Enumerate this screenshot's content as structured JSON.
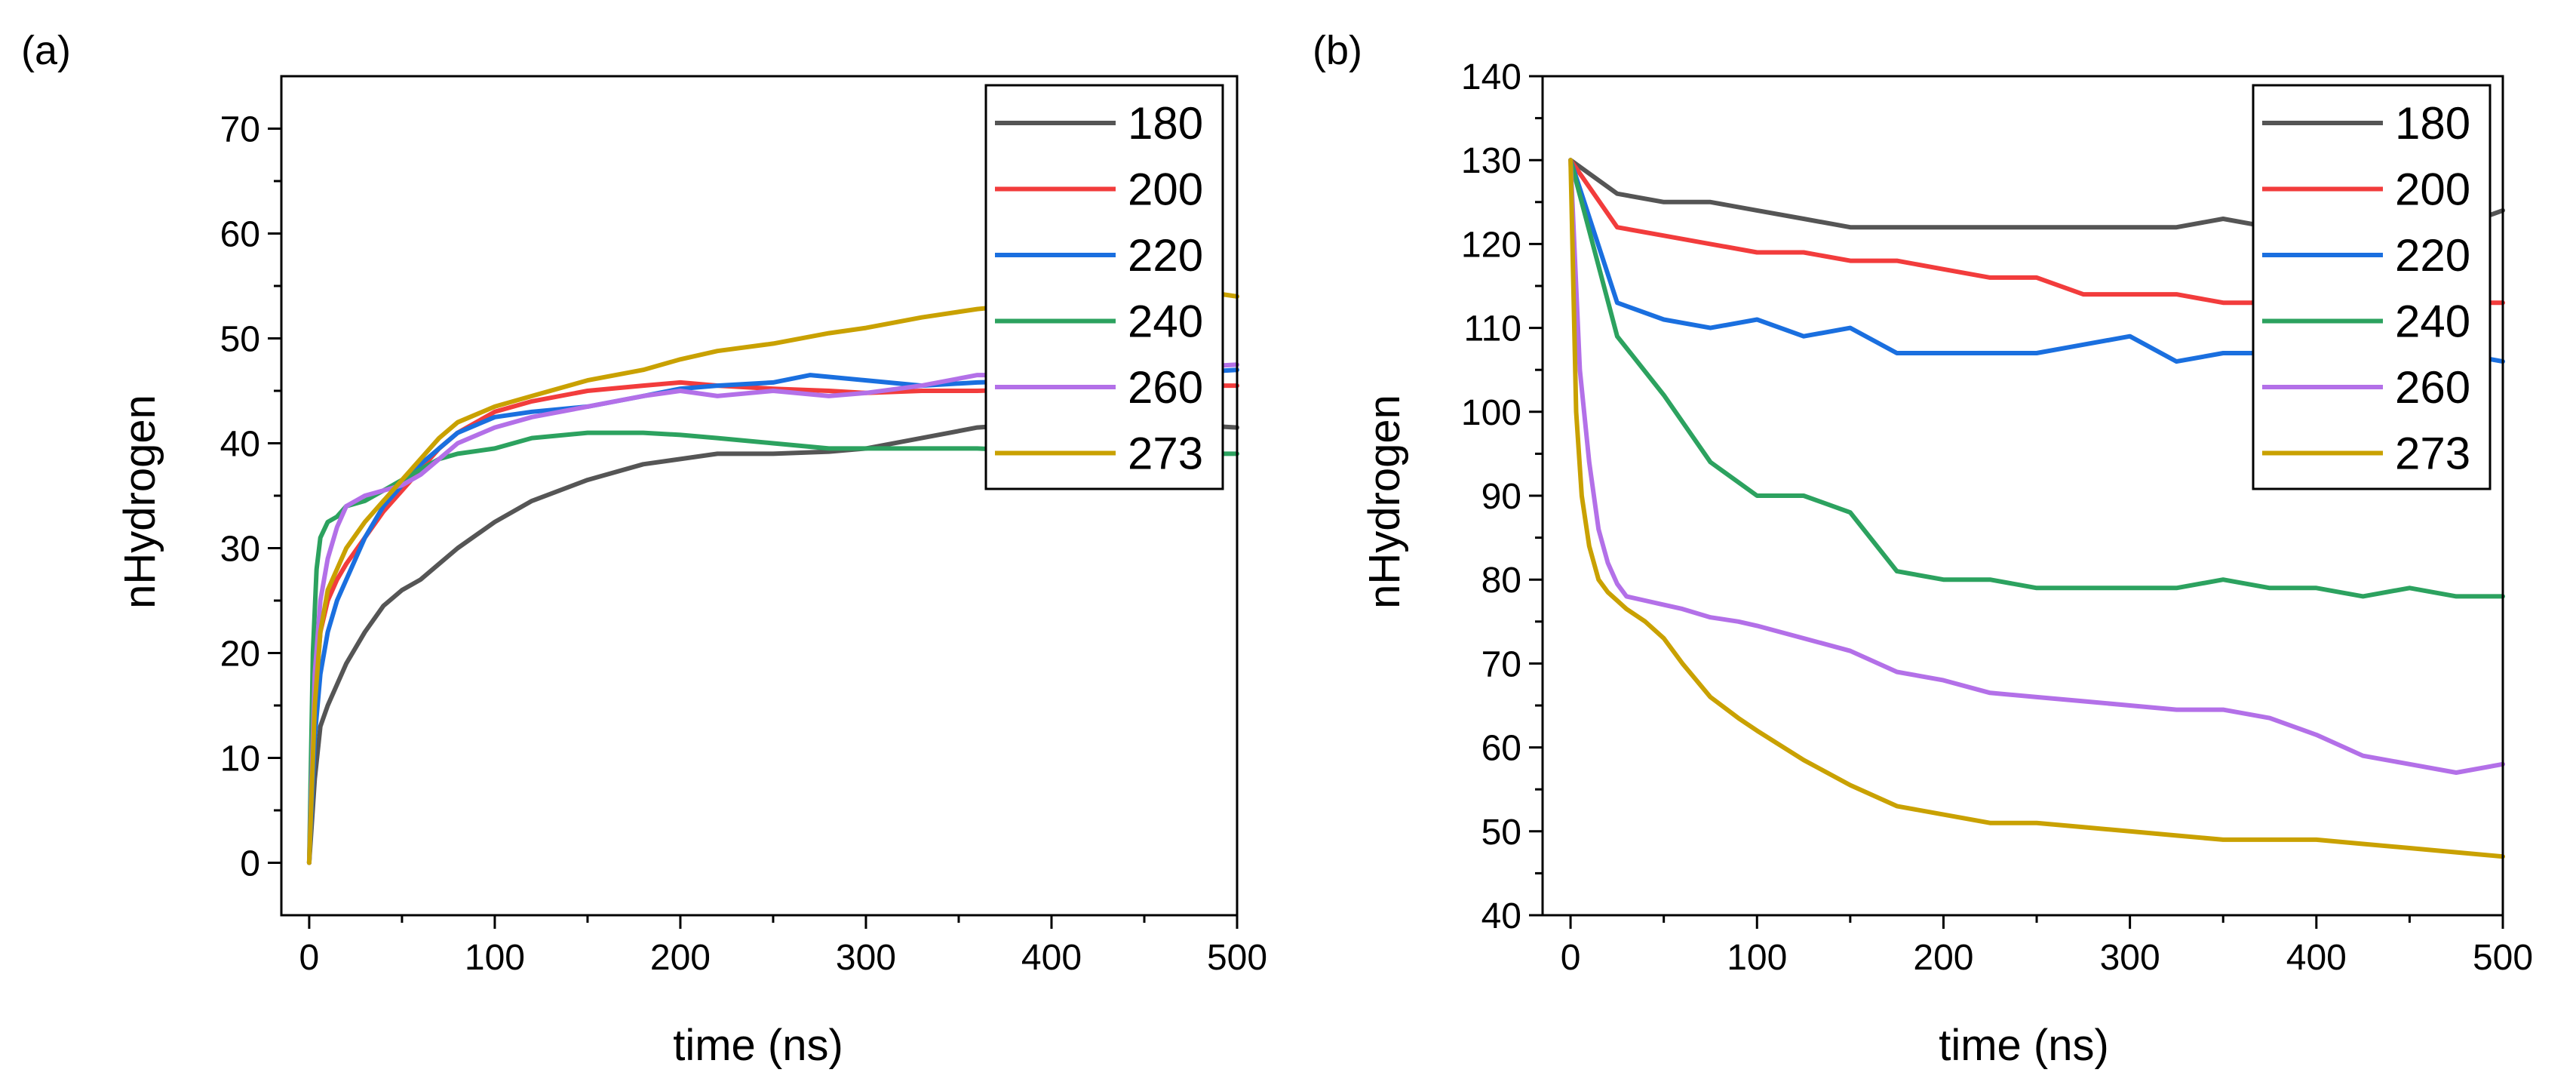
{
  "colors": {
    "180": "#555555",
    "200": "#f23c3c",
    "220": "#1a6fdf",
    "240": "#2ca25f",
    "260": "#b370e8",
    "273": "#c9a100"
  },
  "chart_data": [
    {
      "type": "line",
      "panel": "(a)",
      "xlabel": "time (ns)",
      "ylabel": "nHydrogen",
      "xlim": [
        -15,
        500
      ],
      "ylim": [
        -5,
        75
      ],
      "xticks": [
        0,
        100,
        200,
        300,
        400,
        500
      ],
      "yticks": [
        0,
        10,
        20,
        30,
        40,
        50,
        60,
        70
      ],
      "legend_position": "top-right",
      "series": [
        {
          "name": "180",
          "x": [
            0,
            3,
            6,
            10,
            15,
            20,
            30,
            40,
            50,
            60,
            70,
            80,
            100,
            120,
            150,
            180,
            200,
            220,
            250,
            280,
            300,
            330,
            360,
            400,
            450,
            500
          ],
          "y": [
            0,
            8,
            13,
            15,
            17,
            19,
            22,
            24.5,
            26,
            27,
            28.5,
            30,
            32.5,
            34.5,
            36.5,
            38,
            38.5,
            39,
            39,
            39.2,
            39.5,
            40.5,
            41.5,
            42,
            42,
            41.5
          ]
        },
        {
          "name": "200",
          "x": [
            0,
            3,
            6,
            10,
            15,
            20,
            30,
            40,
            50,
            60,
            70,
            80,
            100,
            120,
            150,
            180,
            200,
            220,
            250,
            280,
            300,
            330,
            360,
            400,
            450,
            500
          ],
          "y": [
            0,
            15,
            22,
            25,
            27,
            28.5,
            31,
            33.5,
            35.5,
            37.5,
            39.5,
            41,
            43,
            44,
            45,
            45.5,
            45.8,
            45.5,
            45.2,
            45,
            44.8,
            45,
            45,
            45.2,
            45.5,
            45.5
          ]
        },
        {
          "name": "220",
          "x": [
            0,
            3,
            6,
            10,
            15,
            20,
            30,
            40,
            50,
            60,
            70,
            80,
            100,
            120,
            150,
            180,
            200,
            220,
            250,
            270,
            300,
            330,
            360,
            400,
            450,
            500
          ],
          "y": [
            0,
            12,
            18,
            22,
            25,
            27,
            31,
            34,
            36,
            38,
            39.5,
            41,
            42.5,
            43,
            43.5,
            44.5,
            45.2,
            45.5,
            45.8,
            46.5,
            46,
            45.5,
            45.8,
            46,
            46.5,
            47
          ]
        },
        {
          "name": "240",
          "x": [
            0,
            2,
            4,
            6,
            10,
            15,
            20,
            30,
            40,
            50,
            60,
            70,
            80,
            100,
            120,
            150,
            180,
            200,
            220,
            250,
            280,
            300,
            330,
            360,
            400,
            450,
            500
          ],
          "y": [
            0,
            20,
            28,
            31,
            32.5,
            33,
            34,
            34.5,
            35.5,
            36.5,
            37.5,
            38.5,
            39,
            39.5,
            40.5,
            41,
            41,
            40.8,
            40.5,
            40,
            39.5,
            39.5,
            39.5,
            39.5,
            39.2,
            39,
            39
          ]
        },
        {
          "name": "260",
          "x": [
            0,
            3,
            6,
            10,
            15,
            20,
            30,
            40,
            50,
            60,
            70,
            80,
            100,
            120,
            150,
            180,
            200,
            220,
            250,
            280,
            300,
            330,
            360,
            400,
            450,
            500
          ],
          "y": [
            0,
            18,
            25,
            29,
            32,
            34,
            35,
            35.5,
            36,
            37,
            38.5,
            40,
            41.5,
            42.5,
            43.5,
            44.5,
            45,
            44.5,
            45,
            44.5,
            44.8,
            45.5,
            46.5,
            46.5,
            47,
            47.5
          ]
        },
        {
          "name": "273",
          "x": [
            0,
            3,
            6,
            10,
            15,
            20,
            30,
            40,
            50,
            60,
            70,
            80,
            100,
            120,
            150,
            180,
            200,
            220,
            250,
            280,
            300,
            330,
            360,
            400,
            450,
            480,
            500
          ],
          "y": [
            0,
            15,
            22,
            26,
            28,
            30,
            32.5,
            34.5,
            36.5,
            38.5,
            40.5,
            42,
            43.5,
            44.5,
            46,
            47,
            48,
            48.8,
            49.5,
            50.5,
            51,
            52,
            52.8,
            53.5,
            54,
            54.5,
            54
          ]
        }
      ]
    },
    {
      "type": "line",
      "panel": "(b)",
      "xlabel": "time (ns)",
      "ylabel": "nHydrogen",
      "xlim": [
        -15,
        500
      ],
      "ylim": [
        40,
        140
      ],
      "xticks": [
        0,
        100,
        200,
        300,
        400,
        500
      ],
      "yticks": [
        40,
        50,
        60,
        70,
        80,
        90,
        100,
        110,
        120,
        130,
        140
      ],
      "legend_position": "top-right",
      "series": [
        {
          "name": "180",
          "x": [
            0,
            25,
            50,
            75,
            100,
            125,
            150,
            175,
            200,
            225,
            250,
            275,
            300,
            325,
            350,
            375,
            400,
            425,
            450,
            475,
            500
          ],
          "y": [
            130,
            126,
            125,
            125,
            124,
            123,
            122,
            122,
            122,
            122,
            122,
            122,
            122,
            122,
            123,
            122,
            122,
            122,
            122,
            122,
            124
          ]
        },
        {
          "name": "200",
          "x": [
            0,
            25,
            50,
            75,
            100,
            125,
            150,
            175,
            200,
            225,
            250,
            275,
            300,
            325,
            350,
            375,
            400,
            425,
            450,
            475,
            500
          ],
          "y": [
            130,
            122,
            121,
            120,
            119,
            119,
            118,
            118,
            117,
            116,
            116,
            114,
            114,
            114,
            113,
            113,
            113,
            113,
            113,
            113,
            113
          ]
        },
        {
          "name": "220",
          "x": [
            0,
            25,
            50,
            75,
            100,
            125,
            150,
            175,
            200,
            225,
            250,
            275,
            300,
            325,
            350,
            375,
            400,
            425,
            450,
            475,
            500
          ],
          "y": [
            130,
            113,
            111,
            110,
            111,
            109,
            110,
            107,
            107,
            107,
            107,
            108,
            109,
            106,
            107,
            107,
            107,
            107,
            107,
            107,
            106
          ]
        },
        {
          "name": "240",
          "x": [
            0,
            25,
            50,
            75,
            100,
            125,
            150,
            175,
            200,
            225,
            250,
            275,
            300,
            325,
            350,
            375,
            400,
            425,
            450,
            475,
            500
          ],
          "y": [
            130,
            109,
            102,
            94,
            90,
            90,
            88,
            81,
            80,
            80,
            79,
            79,
            79,
            79,
            80,
            79,
            79,
            78,
            79,
            78,
            78
          ]
        },
        {
          "name": "260",
          "x": [
            0,
            5,
            10,
            15,
            20,
            25,
            30,
            40,
            50,
            60,
            75,
            90,
            100,
            125,
            150,
            175,
            200,
            225,
            250,
            275,
            300,
            325,
            350,
            375,
            400,
            425,
            450,
            475,
            500
          ],
          "y": [
            130,
            105,
            94,
            86,
            82,
            79.5,
            78,
            77.5,
            77,
            76.5,
            75.5,
            75,
            74.5,
            73,
            71.5,
            69,
            68,
            66.5,
            66,
            65.5,
            65,
            64.5,
            64.5,
            63.5,
            61.5,
            59,
            58,
            57,
            58
          ]
        },
        {
          "name": "273",
          "x": [
            0,
            3,
            6,
            10,
            15,
            20,
            25,
            30,
            40,
            50,
            60,
            75,
            90,
            100,
            125,
            150,
            175,
            200,
            225,
            250,
            275,
            300,
            325,
            350,
            375,
            400,
            425,
            450,
            475,
            500
          ],
          "y": [
            130,
            100,
            90,
            84,
            80,
            78.5,
            77.5,
            76.5,
            75,
            73,
            70,
            66,
            63.5,
            62,
            58.5,
            55.5,
            53,
            52,
            51,
            51,
            50.5,
            50,
            49.5,
            49,
            49,
            49,
            48.5,
            48,
            47.5,
            47
          ]
        }
      ]
    }
  ]
}
